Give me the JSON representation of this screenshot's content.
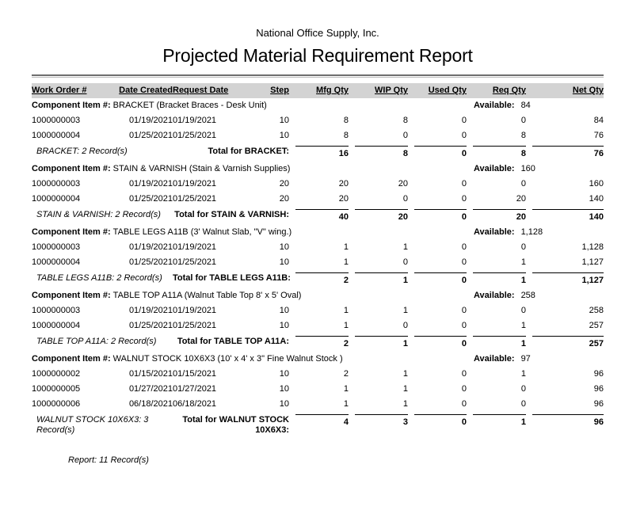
{
  "header": {
    "company": "National Office Supply, Inc.",
    "title": "Projected Material Requirement Report"
  },
  "table": {
    "columns": [
      "Work Order #",
      "Date Created",
      "Request Date",
      "Step",
      "Mfg Qty",
      "WIP Qty",
      "Used Qty",
      "Req Qty",
      "Net Qty"
    ],
    "component_label": "Component Item #:",
    "available_label": "Available:",
    "groups": [
      {
        "component": "BRACKET",
        "description": "(Bracket Braces - Desk Unit)",
        "available": "84",
        "rows": [
          [
            "1000000003",
            "01/19/2021",
            "01/19/2021",
            "10",
            "8",
            "8",
            "0",
            "0",
            "84"
          ],
          [
            "1000000004",
            "01/25/2021",
            "01/25/2021",
            "10",
            "8",
            "0",
            "0",
            "8",
            "76"
          ]
        ],
        "record_count": "BRACKET: 2 Record(s)",
        "total_label": "Total for BRACKET:",
        "totals": [
          "16",
          "8",
          "0",
          "8",
          "76"
        ]
      },
      {
        "component": "STAIN & VARNISH",
        "description": "(Stain & Varnish Supplies)",
        "available": "160",
        "rows": [
          [
            "1000000003",
            "01/19/2021",
            "01/19/2021",
            "20",
            "20",
            "20",
            "0",
            "0",
            "160"
          ],
          [
            "1000000004",
            "01/25/2021",
            "01/25/2021",
            "20",
            "20",
            "0",
            "0",
            "20",
            "140"
          ]
        ],
        "record_count": "STAIN & VARNISH: 2 Record(s)",
        "total_label": "Total for STAIN & VARNISH:",
        "totals": [
          "40",
          "20",
          "0",
          "20",
          "140"
        ]
      },
      {
        "component": "TABLE LEGS A11B",
        "description": "(3' Walnut Slab, \"V\" wing.)",
        "available": "1,128",
        "rows": [
          [
            "1000000003",
            "01/19/2021",
            "01/19/2021",
            "10",
            "1",
            "1",
            "0",
            "0",
            "1,128"
          ],
          [
            "1000000004",
            "01/25/2021",
            "01/25/2021",
            "10",
            "1",
            "0",
            "0",
            "1",
            "1,127"
          ]
        ],
        "record_count": "TABLE LEGS A11B: 2 Record(s)",
        "total_label": "Total for TABLE LEGS A11B:",
        "totals": [
          "2",
          "1",
          "0",
          "1",
          "1,127"
        ]
      },
      {
        "component": "TABLE TOP A11A",
        "description": "(Walnut Table Top 8' x 5' Oval)",
        "available": "258",
        "rows": [
          [
            "1000000003",
            "01/19/2021",
            "01/19/2021",
            "10",
            "1",
            "1",
            "0",
            "0",
            "258"
          ],
          [
            "1000000004",
            "01/25/2021",
            "01/25/2021",
            "10",
            "1",
            "0",
            "0",
            "1",
            "257"
          ]
        ],
        "record_count": "TABLE TOP A11A: 2 Record(s)",
        "total_label": "Total for TABLE TOP A11A:",
        "totals": [
          "2",
          "1",
          "0",
          "1",
          "257"
        ]
      },
      {
        "component": "WALNUT STOCK 10X6X3",
        "description": "(10' x 4' x 3\" Fine Walnut Stock )",
        "available": "97",
        "rows": [
          [
            "1000000002",
            "01/15/2021",
            "01/15/2021",
            "10",
            "2",
            "1",
            "0",
            "1",
            "96"
          ],
          [
            "1000000005",
            "01/27/2021",
            "01/27/2021",
            "10",
            "1",
            "1",
            "0",
            "0",
            "96"
          ],
          [
            "1000000006",
            "06/18/2021",
            "06/18/2021",
            "10",
            "1",
            "1",
            "0",
            "0",
            "96"
          ]
        ],
        "record_count": "WALNUT STOCK 10X6X3: 3 Record(s)",
        "total_label": "Total for WALNUT STOCK 10X6X3:",
        "totals": [
          "4",
          "3",
          "0",
          "1",
          "96"
        ]
      }
    ]
  },
  "footer": {
    "summary": "Report: 11 Record(s)"
  }
}
